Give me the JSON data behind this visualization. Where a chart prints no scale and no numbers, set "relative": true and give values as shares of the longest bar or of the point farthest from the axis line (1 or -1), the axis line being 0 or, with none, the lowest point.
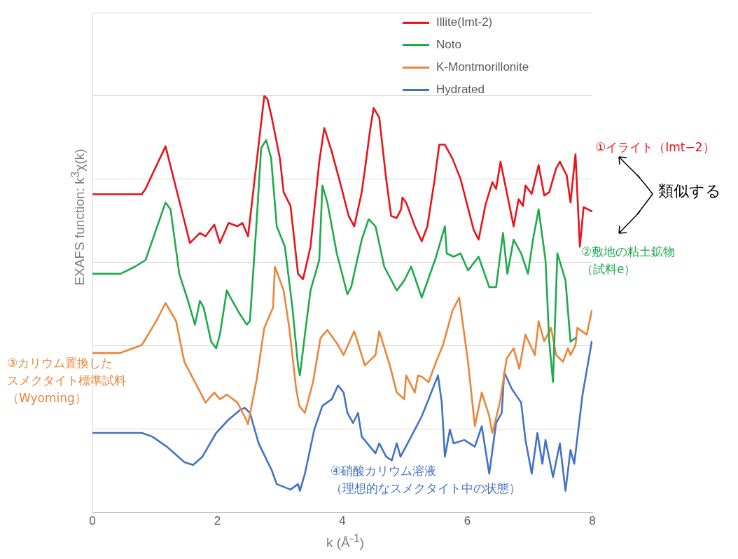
{
  "chart_data": {
    "type": "line",
    "relative": true,
    "xlabel": "k (Å$^{-1}$)",
    "ylabel": "EXAFS function: k$^{3}$χ(k)",
    "xlim": [
      0,
      8
    ],
    "xticks": [
      0,
      2,
      4,
      6,
      8
    ],
    "grid": "y",
    "legend": "top right",
    "tick_labels": "x",
    "marker": "none",
    "line_style": "solid",
    "annotations": [
      "①イライト（Imt−2）",
      "②敷地の粘土鉱物",
      "（試料e）",
      "③カリウム置換した",
      "スメクタイト標準試料",
      "（Wyoming）",
      "④硝酸カリウム溶液",
      "（理想的なスメクタイト中の状態）",
      "類似する"
    ],
    "series": [
      {
        "name": "Illite(Imt-2)",
        "color": "#e8141b",
        "x": [
          0,
          0.79,
          0.85,
          1.17,
          1.56,
          1.72,
          1.81,
          1.95,
          2.04,
          2.18,
          2.32,
          2.4,
          2.49,
          2.75,
          2.8,
          2.87,
          3.0,
          3.06,
          3.17,
          3.29,
          3.37,
          3.49,
          3.63,
          3.71,
          3.83,
          3.99,
          4.1,
          4.19,
          4.31,
          4.37,
          4.44,
          4.5,
          4.59,
          4.7,
          4.78,
          4.87,
          4.94,
          4.96,
          5.02,
          5.16,
          5.27,
          5.36,
          5.47,
          5.55,
          5.64,
          5.76,
          5.89,
          6.1,
          6.18,
          6.29,
          6.4,
          6.46,
          6.53,
          6.63,
          6.74,
          6.82,
          6.89,
          6.93,
          7.03,
          7.14,
          7.23,
          7.31,
          7.42,
          7.48,
          7.59,
          7.65,
          7.73,
          7.8,
          7.86,
          7.99
        ],
        "values": [
          0.764,
          0.764,
          0.777,
          0.879,
          0.647,
          0.671,
          0.663,
          0.691,
          0.647,
          0.695,
          0.687,
          0.695,
          0.663,
          1.0,
          0.993,
          0.948,
          0.85,
          0.769,
          0.736,
          0.573,
          0.56,
          0.638,
          0.842,
          0.923,
          0.866,
          0.777,
          0.712,
          0.687,
          0.769,
          0.834,
          0.915,
          0.971,
          0.948,
          0.801,
          0.712,
          0.707,
          0.728,
          0.756,
          0.744,
          0.687,
          0.651,
          0.687,
          0.793,
          0.883,
          0.883,
          0.85,
          0.801,
          0.679,
          0.655,
          0.739,
          0.793,
          0.777,
          0.842,
          0.769,
          0.687,
          0.752,
          0.736,
          0.785,
          0.765,
          0.834,
          0.761,
          0.769,
          0.826,
          0.842,
          0.809,
          0.744,
          0.86,
          0.638,
          0.733,
          0.723
        ]
      },
      {
        "name": "Noto",
        "color": "#1faa4b",
        "x": [
          0,
          0.45,
          0.68,
          0.85,
          1.0,
          1.17,
          1.25,
          1.39,
          1.53,
          1.64,
          1.72,
          1.78,
          1.9,
          1.98,
          2.04,
          2.15,
          2.24,
          2.36,
          2.47,
          2.52,
          2.63,
          2.7,
          2.78,
          2.86,
          2.95,
          3.08,
          3.2,
          3.29,
          3.32,
          3.4,
          3.49,
          3.63,
          3.68,
          3.76,
          3.8,
          3.91,
          4.08,
          4.14,
          4.31,
          4.42,
          4.53,
          4.67,
          4.87,
          4.99,
          5.1,
          5.27,
          5.5,
          5.64,
          5.67,
          5.78,
          5.89,
          6.01,
          6.18,
          6.35,
          6.46,
          6.57,
          6.64,
          6.74,
          6.86,
          6.97,
          7.05,
          7.14,
          7.25,
          7.31,
          7.37,
          7.44,
          7.57,
          7.65,
          7.73
        ],
        "values": [
          0.573,
          0.573,
          0.59,
          0.606,
          0.671,
          0.744,
          0.728,
          0.573,
          0.508,
          0.451,
          0.508,
          0.492,
          0.41,
          0.394,
          0.427,
          0.533,
          0.508,
          0.476,
          0.451,
          0.459,
          0.704,
          0.875,
          0.894,
          0.85,
          0.687,
          0.638,
          0.492,
          0.353,
          0.329,
          0.427,
          0.533,
          0.606,
          0.785,
          0.744,
          0.712,
          0.622,
          0.524,
          0.541,
          0.655,
          0.704,
          0.687,
          0.59,
          0.533,
          0.557,
          0.59,
          0.516,
          0.614,
          0.687,
          0.622,
          0.614,
          0.622,
          0.581,
          0.614,
          0.541,
          0.541,
          0.671,
          0.573,
          0.655,
          0.622,
          0.573,
          0.655,
          0.728,
          0.606,
          0.41,
          0.313,
          0.622,
          0.557,
          0.41,
          0.419
        ]
      },
      {
        "name": "K-Montmorillonite",
        "color": "#e8873a",
        "x": [
          0,
          0.45,
          0.79,
          1.02,
          1.17,
          1.34,
          1.47,
          1.64,
          1.81,
          1.95,
          2.04,
          2.15,
          2.32,
          2.46,
          2.49,
          2.63,
          2.75,
          2.89,
          2.92,
          3.06,
          3.15,
          3.26,
          3.31,
          3.4,
          3.53,
          3.65,
          3.76,
          3.93,
          4.02,
          4.14,
          4.19,
          4.36,
          4.53,
          4.59,
          4.76,
          4.87,
          4.99,
          5.02,
          5.16,
          5.21,
          5.27,
          5.38,
          5.5,
          5.61,
          5.76,
          5.87,
          6.01,
          6.12,
          6.23,
          6.35,
          6.4,
          6.52,
          6.63,
          6.74,
          6.83,
          6.93,
          7.08,
          7.14,
          7.23,
          7.34,
          7.42,
          7.53,
          7.61,
          7.65,
          7.73,
          7.76,
          7.91,
          7.99
        ],
        "values": [
          0.383,
          0.383,
          0.402,
          0.459,
          0.503,
          0.459,
          0.362,
          0.313,
          0.264,
          0.288,
          0.272,
          0.283,
          0.264,
          0.223,
          0.212,
          0.321,
          0.443,
          0.492,
          0.59,
          0.533,
          0.443,
          0.296,
          0.256,
          0.239,
          0.313,
          0.419,
          0.438,
          0.402,
          0.378,
          0.419,
          0.435,
          0.353,
          0.378,
          0.435,
          0.353,
          0.288,
          0.272,
          0.329,
          0.288,
          0.329,
          0.326,
          0.313,
          0.362,
          0.402,
          0.484,
          0.516,
          0.362,
          0.207,
          0.288,
          0.231,
          0.191,
          0.264,
          0.37,
          0.394,
          0.345,
          0.427,
          0.378,
          0.459,
          0.411,
          0.443,
          0.378,
          0.362,
          0.394,
          0.378,
          0.402,
          0.443,
          0.427,
          0.484
        ]
      },
      {
        "name": "Hydrated",
        "color": "#4472c4",
        "x": [
          0,
          0.79,
          0.96,
          1.19,
          1.47,
          1.61,
          1.76,
          1.98,
          2.18,
          2.38,
          2.44,
          2.52,
          2.66,
          2.87,
          2.95,
          3.17,
          3.29,
          3.32,
          3.4,
          3.55,
          3.68,
          3.83,
          3.93,
          4.02,
          4.08,
          4.17,
          4.25,
          4.31,
          4.53,
          4.59,
          4.7,
          4.79,
          4.87,
          4.93,
          5.1,
          5.27,
          5.38,
          5.53,
          5.59,
          5.64,
          5.72,
          5.78,
          5.95,
          6.12,
          6.23,
          6.35,
          6.46,
          6.55,
          6.59,
          6.71,
          6.86,
          6.93,
          7.03,
          7.12,
          7.2,
          7.25,
          7.37,
          7.48,
          7.57,
          7.65,
          7.71,
          7.84,
          7.99
        ],
        "values": [
          0.191,
          0.191,
          0.182,
          0.158,
          0.121,
          0.114,
          0.134,
          0.191,
          0.223,
          0.248,
          0.251,
          0.239,
          0.166,
          0.101,
          0.068,
          0.055,
          0.068,
          0.052,
          0.093,
          0.199,
          0.256,
          0.272,
          0.305,
          0.288,
          0.239,
          0.215,
          0.239,
          0.182,
          0.142,
          0.166,
          0.134,
          0.125,
          0.166,
          0.134,
          0.182,
          0.231,
          0.272,
          0.329,
          0.264,
          0.134,
          0.199,
          0.166,
          0.174,
          0.158,
          0.207,
          0.093,
          0.215,
          0.239,
          0.337,
          0.297,
          0.264,
          0.174,
          0.093,
          0.191,
          0.117,
          0.174,
          0.085,
          0.166,
          0.052,
          0.15,
          0.117,
          0.28,
          0.41
        ]
      }
    ]
  }
}
